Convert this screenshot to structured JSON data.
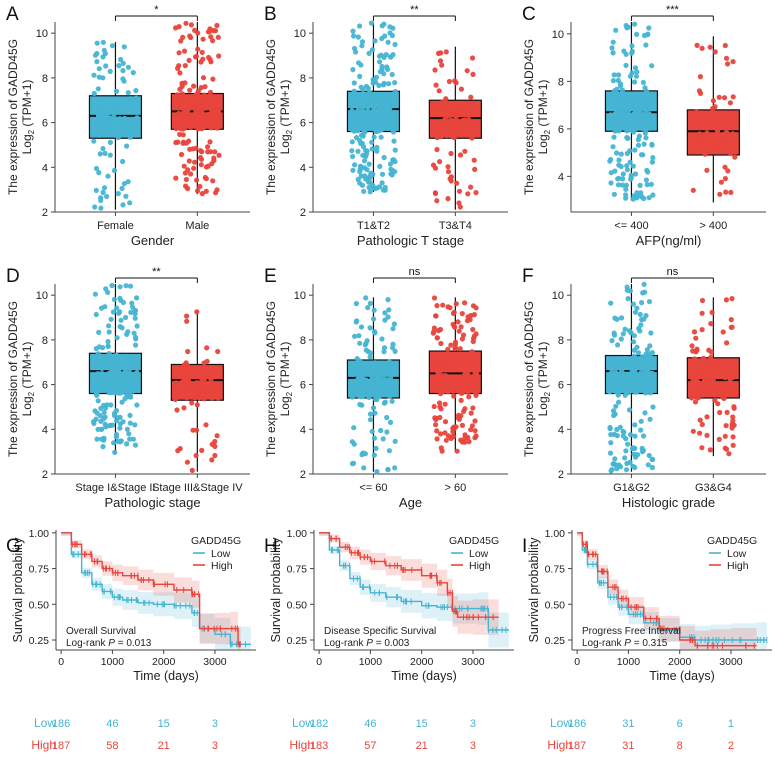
{
  "colors": {
    "low": "#46B4D3",
    "high": "#E8453C",
    "ink": "#222222",
    "axis": "#444444"
  },
  "chart_data": [
    {
      "type": "box",
      "panel_label": "A",
      "ylabel_line1": "The expression of GADD45G",
      "ylabel_line2_pre": "Log",
      "ylabel_line2_sub": "2",
      "ylabel_line2_post": " (TPM+1)",
      "ylim": [
        2,
        10.5
      ],
      "yticks": [
        2,
        4,
        6,
        8,
        10
      ],
      "xlabel": "Gender",
      "categories": [
        "Female",
        "Male"
      ],
      "boxes": [
        {
          "min": 2.1,
          "q1": 5.3,
          "median": 6.3,
          "q3": 7.2,
          "max": 9.6,
          "n": 120
        },
        {
          "min": 2.8,
          "q1": 5.7,
          "median": 6.5,
          "q3": 7.3,
          "max": 10.5,
          "n": 240
        }
      ],
      "significance": "*"
    },
    {
      "type": "box",
      "panel_label": "B",
      "ylabel_line1": "The expression of GADD45G",
      "ylabel_line2_pre": "Log",
      "ylabel_line2_sub": "2",
      "ylabel_line2_post": " (TPM+1)",
      "ylim": [
        2,
        10.5
      ],
      "yticks": [
        2,
        4,
        6,
        8,
        10
      ],
      "xlabel": "Pathologic T stage",
      "categories": [
        "T1&T2",
        "T3&T4"
      ],
      "boxes": [
        {
          "min": 2.9,
          "q1": 5.6,
          "median": 6.6,
          "q3": 7.4,
          "max": 10.5,
          "n": 270
        },
        {
          "min": 2.1,
          "q1": 5.3,
          "median": 6.2,
          "q3": 7.0,
          "max": 9.4,
          "n": 95
        }
      ],
      "significance": "**"
    },
    {
      "type": "box",
      "panel_label": "C",
      "ylabel_line1": "The expression of GADD45G",
      "ylabel_line2_pre": "Log",
      "ylabel_line2_sub": "2",
      "ylabel_line2_post": " (TPM+1)",
      "ylim": [
        2.5,
        10.5
      ],
      "yticks": [
        4,
        6,
        8,
        10
      ],
      "xlabel": "AFP(ng/ml)",
      "categories": [
        "<= 400",
        "> 400"
      ],
      "boxes": [
        {
          "min": 3.0,
          "q1": 5.9,
          "median": 6.7,
          "q3": 7.6,
          "max": 10.5,
          "n": 215
        },
        {
          "min": 2.9,
          "q1": 4.9,
          "median": 5.9,
          "q3": 6.8,
          "max": 9.9,
          "n": 65
        }
      ],
      "significance": "***"
    },
    {
      "type": "box",
      "panel_label": "D",
      "ylabel_line1": "The expression of GADD45G",
      "ylabel_line2_pre": "Log",
      "ylabel_line2_sub": "2",
      "ylabel_line2_post": " (TPM+1)",
      "ylim": [
        2,
        10.5
      ],
      "yticks": [
        2,
        4,
        6,
        8,
        10
      ],
      "xlabel": "Pathologic stage",
      "categories": [
        "Stage I&Stage II",
        "Stage III&Stage IV"
      ],
      "boxes": [
        {
          "min": 2.9,
          "q1": 5.6,
          "median": 6.6,
          "q3": 7.4,
          "max": 10.5,
          "n": 255
        },
        {
          "min": 2.1,
          "q1": 5.3,
          "median": 6.2,
          "q3": 6.9,
          "max": 9.3,
          "n": 90
        }
      ],
      "significance": "**"
    },
    {
      "type": "box",
      "panel_label": "E",
      "ylabel_line1": "The expression of GADD45G",
      "ylabel_line2_pre": "Log",
      "ylabel_line2_sub": "2",
      "ylabel_line2_post": " (TPM+1)",
      "ylim": [
        2,
        10.5
      ],
      "yticks": [
        2,
        4,
        6,
        8,
        10
      ],
      "xlabel": "Age",
      "categories": [
        "<= 60",
        "> 60"
      ],
      "boxes": [
        {
          "min": 2.1,
          "q1": 5.4,
          "median": 6.3,
          "q3": 7.1,
          "max": 9.9,
          "n": 175
        },
        {
          "min": 3.0,
          "q1": 5.6,
          "median": 6.5,
          "q3": 7.5,
          "max": 9.9,
          "n": 195
        }
      ],
      "significance": "ns"
    },
    {
      "type": "box",
      "panel_label": "F",
      "ylabel_line1": "The expression of GADD45G",
      "ylabel_line2_pre": "Log",
      "ylabel_line2_sub": "2",
      "ylabel_line2_post": " (TPM+1)",
      "ylim": [
        2,
        10.5
      ],
      "yticks": [
        2,
        4,
        6,
        8,
        10
      ],
      "xlabel": "Histologic grade",
      "categories": [
        "G1&G2",
        "G3&G4"
      ],
      "boxes": [
        {
          "min": 2.1,
          "q1": 5.6,
          "median": 6.6,
          "q3": 7.3,
          "max": 10.5,
          "n": 230
        },
        {
          "min": 2.8,
          "q1": 5.4,
          "median": 6.2,
          "q3": 7.2,
          "max": 9.9,
          "n": 130
        }
      ],
      "significance": "ns"
    },
    {
      "type": "line",
      "panel_label": "G",
      "ylabel": "Survival probability",
      "xlabel": "Time (days)",
      "xlim": [
        -100,
        3800
      ],
      "ylim": [
        0.18,
        1.02
      ],
      "xticks": [
        0,
        1000,
        2000,
        3000
      ],
      "yticks": [
        0.25,
        0.5,
        0.75,
        1.0
      ],
      "legend_title": "GADD45G",
      "legend": [
        "Low",
        "High"
      ],
      "annotation_line1": "Overall Survival",
      "annotation_pre": "Log-rank ",
      "annotation_p": "P",
      "annotation_post": " = 0.013",
      "series": [
        {
          "name": "Low",
          "x": [
            0,
            200,
            400,
            600,
            800,
            1000,
            1200,
            1500,
            1800,
            2200,
            2550,
            2700,
            3000,
            3300,
            3700
          ],
          "y": [
            1.0,
            0.85,
            0.72,
            0.64,
            0.59,
            0.55,
            0.53,
            0.51,
            0.5,
            0.49,
            0.44,
            0.33,
            0.29,
            0.22,
            0.22
          ]
        },
        {
          "name": "High",
          "x": [
            0,
            200,
            400,
            600,
            800,
            1000,
            1200,
            1500,
            1800,
            2200,
            2550,
            2700,
            3000,
            3300,
            3450,
            3500
          ],
          "y": [
            1.0,
            0.92,
            0.85,
            0.8,
            0.75,
            0.72,
            0.7,
            0.67,
            0.64,
            0.6,
            0.57,
            0.33,
            0.33,
            0.33,
            0.22,
            0.22
          ]
        }
      ],
      "risk_table": {
        "labels": [
          "Low",
          "High"
        ],
        "times": [
          0,
          1000,
          2000,
          3000
        ],
        "low": [
          "186",
          "46",
          "15",
          "3"
        ],
        "high": [
          "187",
          "58",
          "21",
          "3"
        ]
      }
    },
    {
      "type": "line",
      "panel_label": "H",
      "ylabel": "Survival probability",
      "xlabel": "Time (days)",
      "xlim": [
        -100,
        3800
      ],
      "ylim": [
        0.18,
        1.02
      ],
      "xticks": [
        0,
        1000,
        2000,
        3000
      ],
      "yticks": [
        0.25,
        0.5,
        0.75,
        1.0
      ],
      "legend_title": "GADD45G",
      "legend": [
        "Low",
        "High"
      ],
      "annotation_line1": "Disease Specific Survival",
      "annotation_pre": "Log-rank ",
      "annotation_p": "P",
      "annotation_post": " = 0.003",
      "series": [
        {
          "name": "Low",
          "x": [
            0,
            200,
            400,
            600,
            800,
            1000,
            1300,
            1600,
            2000,
            2300,
            2600,
            3100,
            3300,
            3700
          ],
          "y": [
            1.0,
            0.88,
            0.77,
            0.68,
            0.62,
            0.58,
            0.55,
            0.52,
            0.49,
            0.48,
            0.47,
            0.47,
            0.32,
            0.32
          ]
        },
        {
          "name": "High",
          "x": [
            0,
            200,
            400,
            600,
            800,
            1000,
            1300,
            1600,
            2000,
            2300,
            2500,
            2600,
            2700,
            3000,
            3500
          ],
          "y": [
            1.0,
            0.96,
            0.9,
            0.86,
            0.83,
            0.8,
            0.77,
            0.74,
            0.7,
            0.65,
            0.58,
            0.45,
            0.41,
            0.41,
            0.41
          ]
        }
      ],
      "risk_table": {
        "labels": [
          "Low",
          "High"
        ],
        "times": [
          0,
          1000,
          2000,
          3000
        ],
        "low": [
          "182",
          "46",
          "15",
          "3"
        ],
        "high": [
          "183",
          "57",
          "21",
          "3"
        ]
      }
    },
    {
      "type": "line",
      "panel_label": "I",
      "ylabel": "Survival probability",
      "xlabel": "Time (days)",
      "xlim": [
        -100,
        3800
      ],
      "ylim": [
        0.18,
        1.02
      ],
      "xticks": [
        0,
        1000,
        2000,
        3000
      ],
      "yticks": [
        0.25,
        0.5,
        0.75,
        1.0
      ],
      "legend_title": "GADD45G",
      "legend": [
        "Low",
        "High"
      ],
      "annotation_line1": "Progress Free Interval",
      "annotation_pre": "Log-rank ",
      "annotation_p": "P",
      "annotation_post": " = 0.315",
      "series": [
        {
          "name": "Low",
          "x": [
            0,
            100,
            200,
            400,
            600,
            800,
            1000,
            1300,
            1600,
            2000,
            2300,
            2600,
            3000,
            3500,
            3700
          ],
          "y": [
            1.0,
            0.88,
            0.78,
            0.65,
            0.55,
            0.48,
            0.43,
            0.37,
            0.32,
            0.27,
            0.25,
            0.25,
            0.25,
            0.25,
            0.25
          ]
        },
        {
          "name": "High",
          "x": [
            0,
            100,
            200,
            400,
            600,
            800,
            1000,
            1300,
            1600,
            2000,
            2300,
            2600,
            3000,
            3500
          ],
          "y": [
            1.0,
            0.92,
            0.85,
            0.73,
            0.62,
            0.54,
            0.48,
            0.4,
            0.33,
            0.25,
            0.21,
            0.21,
            0.21,
            0.21
          ]
        }
      ],
      "risk_table": {
        "labels": [
          "Low",
          "High"
        ],
        "times": [
          0,
          1000,
          2000,
          3000
        ],
        "low": [
          "186",
          "31",
          "6",
          "1"
        ],
        "high": [
          "187",
          "31",
          "8",
          "2"
        ]
      }
    }
  ]
}
